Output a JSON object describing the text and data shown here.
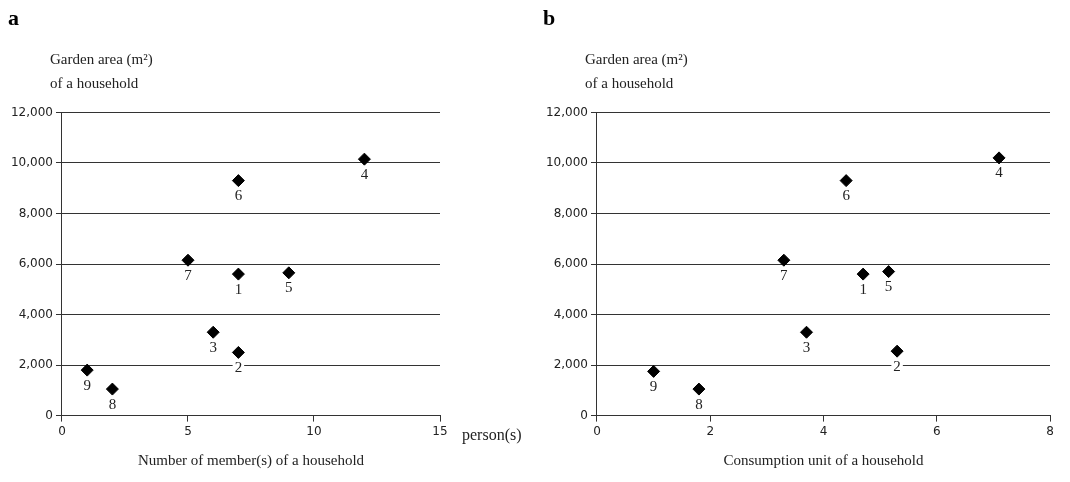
{
  "chart_data": [
    {
      "type": "scatter",
      "title": "a",
      "ylabel": "Garden area (m²)\nof a household",
      "xlabel": "Number of member(s) of a household",
      "x": [
        7,
        7,
        6,
        12,
        9,
        7,
        5,
        2,
        1
      ],
      "series": [
        {
          "color": "#000000",
          "values": [
            5600,
            2500,
            3300,
            10150,
            5650,
            9300,
            6150,
            1050,
            1800
          ]
        }
      ],
      "xlim": [
        0,
        15
      ],
      "xticks": [
        0,
        5,
        10,
        15
      ],
      "ylim": [
        0,
        12000
      ],
      "yticks": [
        0,
        {
          "value": 2000,
          "label": "2,000"
        },
        {
          "value": 4000,
          "label": "4,000"
        },
        {
          "value": 6000,
          "label": "6,000"
        },
        {
          "value": 8000,
          "label": "8,000"
        },
        {
          "value": 10000,
          "label": "10,000"
        },
        {
          "value": 12000,
          "label": "12,000"
        }
      ],
      "grid": "y",
      "legend": false,
      "marker": "diamond",
      "annotations": [
        {
          "text": "1",
          "x": 7,
          "y": 5600
        },
        {
          "text": "2",
          "x": 7,
          "y": 2500
        },
        {
          "text": "3",
          "x": 6,
          "y": 3300
        },
        {
          "text": "4",
          "x": 12,
          "y": 10150
        },
        {
          "text": "5",
          "x": 9,
          "y": 5650
        },
        {
          "text": "6",
          "x": 7,
          "y": 9300
        },
        {
          "text": "7",
          "x": 5,
          "y": 6150
        },
        {
          "text": "8",
          "x": 2,
          "y": 1050
        },
        {
          "text": "9",
          "x": 1,
          "y": 1800
        },
        "person(s)"
      ]
    },
    {
      "type": "scatter",
      "title": "b",
      "ylabel": "Garden area (m²)\nof a household",
      "xlabel": "Consumption unit of a household",
      "x": [
        4.7,
        5.3,
        3.7,
        7.1,
        5.15,
        4.4,
        3.3,
        1.8,
        1.0
      ],
      "series": [
        {
          "color": "#000000",
          "values": [
            5600,
            2550,
            3300,
            10200,
            5700,
            9300,
            6150,
            1050,
            1750
          ]
        }
      ],
      "xlim": [
        0,
        8
      ],
      "xticks": [
        0,
        2,
        4,
        6,
        8
      ],
      "ylim": [
        0,
        12000
      ],
      "yticks": [
        0,
        {
          "value": 2000,
          "label": "2,000"
        },
        {
          "value": 4000,
          "label": "4,000"
        },
        {
          "value": 6000,
          "label": "6,000"
        },
        {
          "value": 8000,
          "label": "8,000"
        },
        {
          "value": 10000,
          "label": "10,000"
        },
        {
          "value": 12000,
          "label": "12,000"
        }
      ],
      "grid": "y",
      "legend": false,
      "marker": "diamond",
      "annotations": [
        {
          "text": "1",
          "x": 4.7,
          "y": 5600
        },
        {
          "text": "2",
          "x": 5.3,
          "y": 2550
        },
        {
          "text": "3",
          "x": 3.7,
          "y": 3300
        },
        {
          "text": "4",
          "x": 7.1,
          "y": 10200
        },
        {
          "text": "5",
          "x": 5.15,
          "y": 5700
        },
        {
          "text": "6",
          "x": 4.4,
          "y": 9300
        },
        {
          "text": "7",
          "x": 3.3,
          "y": 6150
        },
        {
          "text": "8",
          "x": 1.8,
          "y": 1050
        },
        {
          "text": "9",
          "x": 1.0,
          "y": 1750
        }
      ]
    }
  ]
}
